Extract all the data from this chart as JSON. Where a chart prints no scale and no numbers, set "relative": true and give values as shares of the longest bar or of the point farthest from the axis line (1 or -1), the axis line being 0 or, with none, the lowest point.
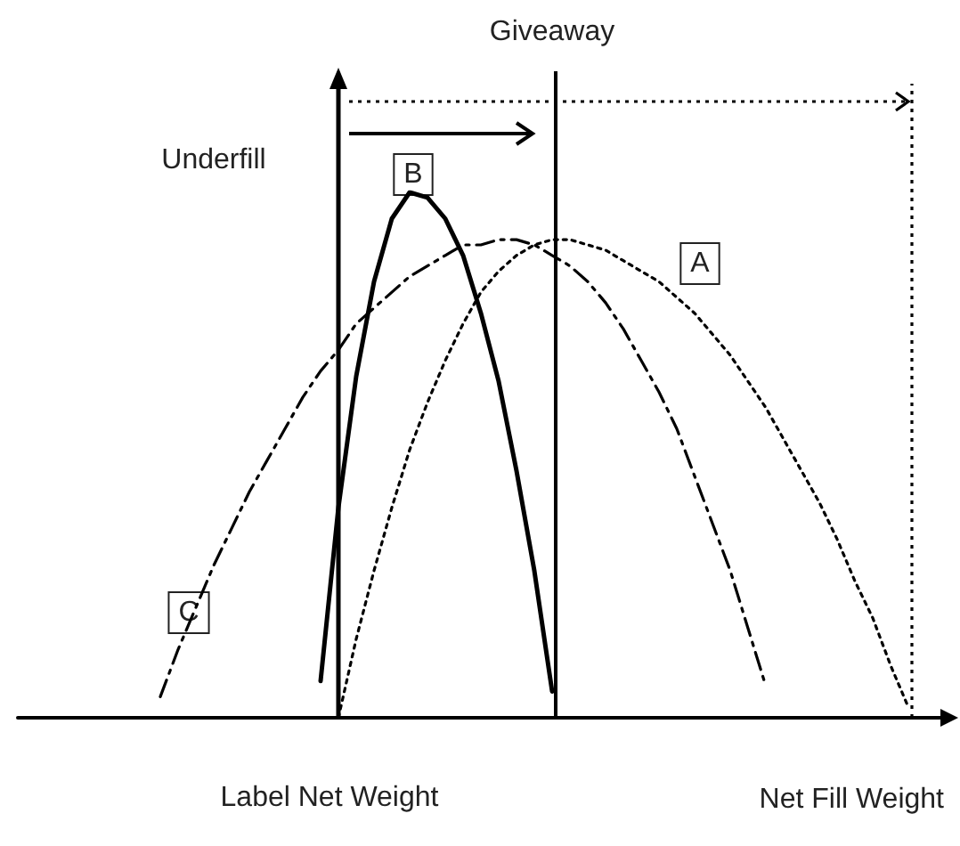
{
  "chart_data": {
    "type": "line",
    "relative": true,
    "xlabel": "Net Fill Weight",
    "annotations": [
      "Giveaway",
      "Underfill",
      "Label Net Weight"
    ],
    "categories": [
      null,
      null,
      null,
      null,
      null,
      null,
      null,
      null,
      null,
      null,
      null,
      null,
      null,
      null,
      null,
      null,
      null,
      null,
      null,
      null,
      null,
      null,
      null,
      null,
      null,
      null,
      null,
      null,
      null,
      null,
      null,
      null,
      null,
      null,
      null,
      null,
      null,
      null,
      null,
      null,
      null,
      null,
      null,
      null,
      null,
      null,
      null,
      null,
      null,
      null,
      null,
      null,
      null
    ],
    "grid": false,
    "legend": false,
    "marker": "none",
    "series": [
      {
        "name": "A",
        "color": "#000000",
        "line_style": "dotted",
        "values": [
          null,
          null,
          null,
          null,
          null,
          null,
          null,
          null,
          null,
          null,
          null,
          null,
          null,
          null,
          null,
          null,
          null,
          null,
          0,
          0.15,
          0.28,
          0.4,
          0.51,
          0.6,
          0.68,
          0.75,
          0.81,
          0.85,
          0.88,
          0.9,
          0.91,
          0.91,
          0.9,
          0.89,
          0.87,
          0.85,
          0.83,
          0.8,
          0.77,
          0.73,
          0.69,
          0.64,
          0.59,
          0.53,
          0.47,
          0.41,
          0.34,
          0.26,
          0.19,
          0.1,
          0.02,
          null,
          null
        ]
      },
      {
        "name": "B",
        "color": "#000000",
        "line_style": "solid",
        "values": [
          null,
          null,
          null,
          null,
          null,
          null,
          null,
          null,
          null,
          null,
          null,
          null,
          null,
          null,
          null,
          null,
          null,
          0.07,
          0.4,
          0.65,
          0.83,
          0.95,
          1.0,
          0.99,
          0.95,
          0.88,
          0.77,
          0.64,
          0.47,
          0.28,
          0.05,
          null,
          null,
          null,
          null,
          null,
          null,
          null,
          null,
          null,
          null,
          null,
          null,
          null,
          null,
          null,
          null,
          null,
          null,
          null,
          null,
          null,
          null
        ]
      },
      {
        "name": "C",
        "color": "#000000",
        "line_style": "dashed",
        "values": [
          null,
          null,
          null,
          null,
          null,
          null,
          null,
          null,
          0.04,
          0.13,
          0.21,
          0.29,
          0.36,
          0.43,
          0.49,
          0.55,
          0.61,
          0.66,
          0.7,
          0.75,
          0.78,
          0.81,
          0.84,
          0.86,
          0.88,
          0.9,
          0.9,
          0.91,
          0.91,
          0.9,
          0.88,
          0.86,
          0.83,
          0.79,
          0.74,
          0.68,
          0.62,
          0.55,
          0.46,
          0.37,
          0.28,
          0.17,
          0.06,
          null,
          null,
          null,
          null,
          null,
          null,
          null,
          null,
          null,
          null
        ]
      }
    ]
  }
}
